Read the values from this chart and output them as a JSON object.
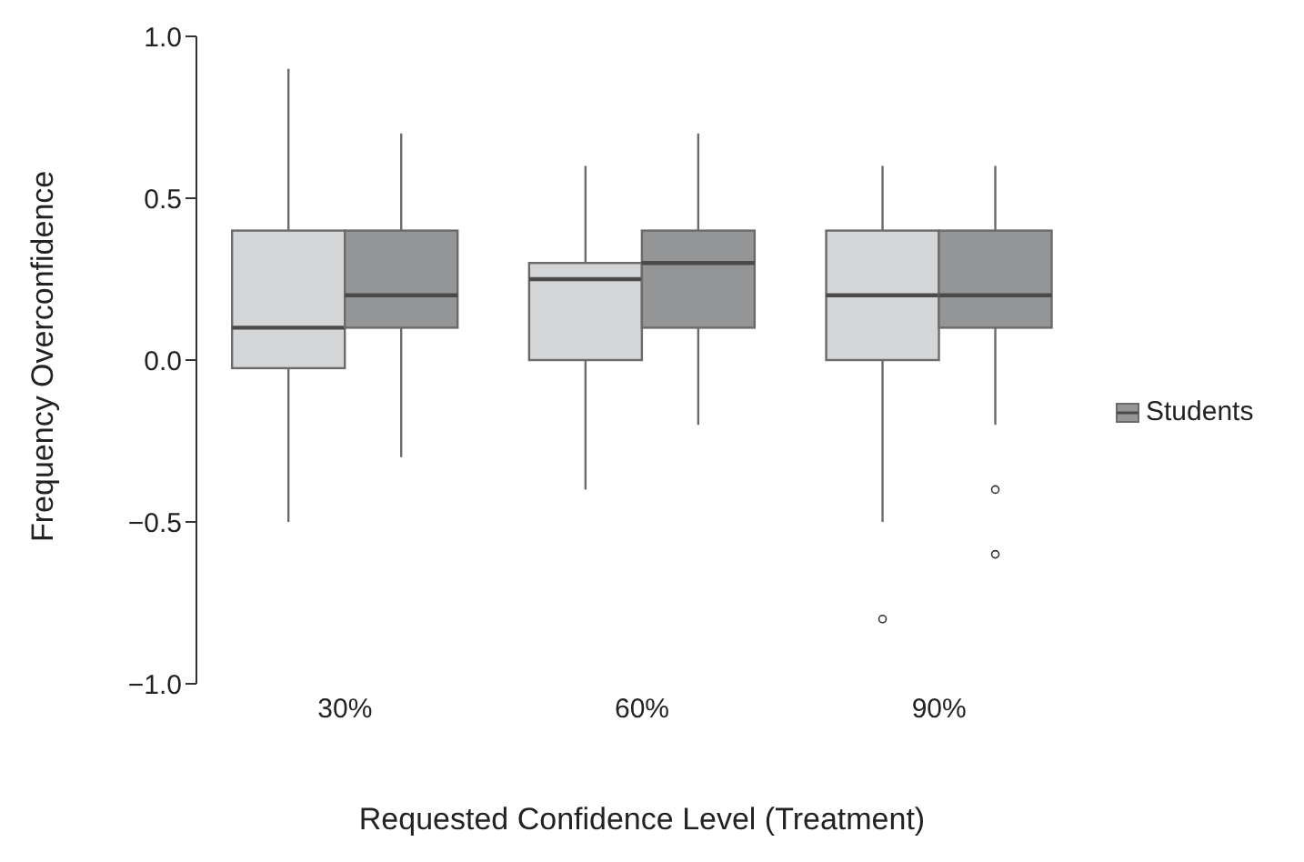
{
  "chart_data": {
    "type": "box",
    "xlabel": "Requested Confidence Level (Treatment)",
    "ylabel": "Frequency Overconfidence",
    "categories": [
      "30%",
      "60%",
      "90%"
    ],
    "series": [
      {
        "color": "#d4d5d7",
        "boxes": [
          {
            "low": -0.5,
            "q1": -0.025,
            "median": 0.1,
            "q3": 0.4,
            "high": 0.9
          },
          {
            "low": -0.4,
            "q1": 0,
            "median": 0.25,
            "q3": 0.3,
            "high": 0.6
          },
          {
            "low": -0.5,
            "q1": 0,
            "median": 0.2,
            "q3": 0.4,
            "high": 0.6,
            "outliers": [
              -0.8
            ]
          }
        ]
      },
      {
        "name": "Students",
        "color": "#949597",
        "boxes": [
          {
            "low": -0.3,
            "q1": 0.1,
            "median": 0.2,
            "q3": 0.4,
            "high": 0.7
          },
          {
            "low": -0.2,
            "q1": 0.1,
            "median": 0.3,
            "q3": 0.4,
            "high": 0.7
          },
          {
            "low": -0.2,
            "q1": 0.1,
            "median": 0.2,
            "q3": 0.4,
            "high": 0.6,
            "outliers": [
              -0.4,
              -0.6
            ]
          }
        ]
      }
    ],
    "ylim": [
      -1,
      1
    ],
    "yticks": [
      {
        "value": -1,
        "label": "−1.0"
      },
      {
        "value": -0.5,
        "label": "−0.5"
      },
      {
        "value": 0,
        "label": "0.0"
      },
      {
        "value": 0.5,
        "label": "0.5"
      },
      {
        "value": 1,
        "label": "1.0"
      }
    ],
    "grid": false,
    "legend": "right"
  }
}
